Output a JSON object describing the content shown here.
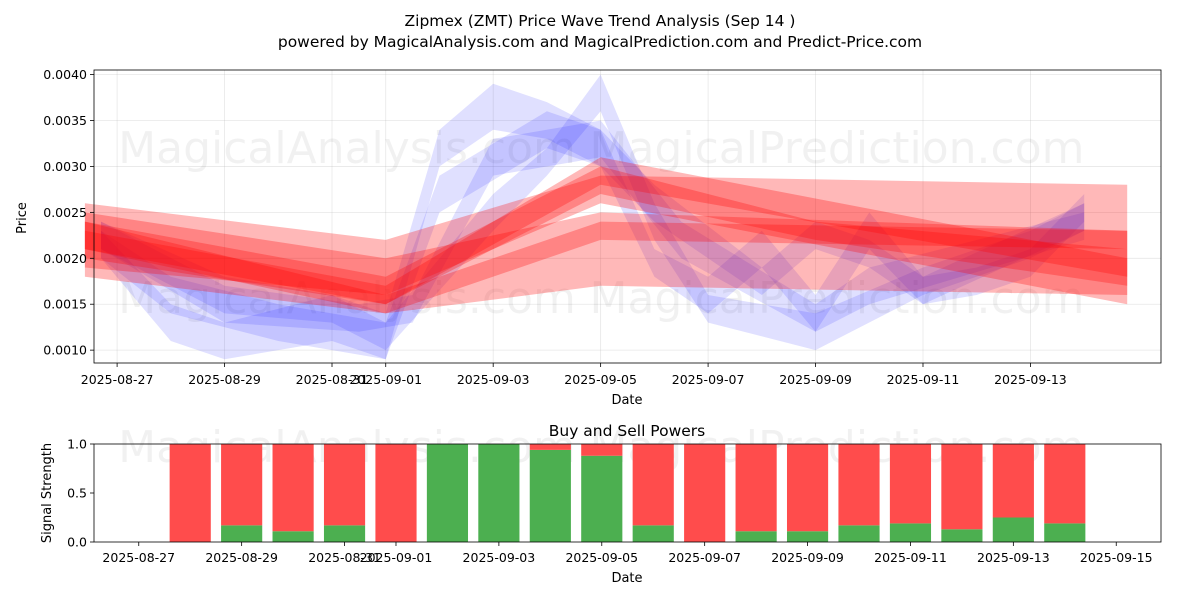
{
  "title": "Zipmex (ZMT) Price Wave Trend Analysis (Sep 14 )",
  "subtitle": "powered by MagicalAnalysis.com and MagicalPrediction.com and Predict-Price.com",
  "watermarks": [
    "MagicalAnalysis.com",
    "MagicalPrediction.com"
  ],
  "colors": {
    "bull_bar": "#4caf50",
    "bear_bar": "#ff4c4c",
    "red_band": "#ff0000",
    "blue_band": "#0000ff"
  },
  "chart_data": [
    {
      "type": "area",
      "title": "",
      "xlabel": "Date",
      "ylabel": "Price",
      "ylim": [
        0.00086,
        0.00405
      ],
      "xlim_days": [
        -0.43,
        19.43
      ],
      "x_tick_labels": [
        "2025-08-27",
        "2025-08-29",
        "2025-08-31",
        "2025-09-01",
        "2025-09-03",
        "2025-09-05",
        "2025-09-07",
        "2025-09-09",
        "2025-09-11",
        "2025-09-13"
      ],
      "x_tick_days": [
        0,
        2,
        4,
        5,
        7,
        9,
        11,
        13,
        15,
        17
      ],
      "y_ticks": [
        0.001,
        0.0015,
        0.002,
        0.0025,
        0.003,
        0.0035,
        0.004
      ],
      "y_tick_labels": [
        "0.0010",
        "0.0015",
        "0.0020",
        "0.0025",
        "0.0030",
        "0.0035",
        "0.0040"
      ],
      "red_bands": [
        {
          "name": "Red band 1",
          "x": [
            -0.6,
            5,
            9,
            18.8
          ],
          "upper": [
            0.0025,
            0.002,
            0.0025,
            0.0023
          ],
          "lower": [
            0.0018,
            0.0014,
            0.0017,
            0.0016
          ]
        },
        {
          "name": "Red band 2",
          "x": [
            -0.6,
            5,
            9,
            18.8
          ],
          "upper": [
            0.0023,
            0.0017,
            0.0031,
            0.002
          ],
          "lower": [
            0.002,
            0.0015,
            0.0028,
            0.0018
          ]
        },
        {
          "name": "Red band 3",
          "x": [
            -0.6,
            5,
            9,
            18.8
          ],
          "upper": [
            0.0026,
            0.0022,
            0.0029,
            0.0028
          ],
          "lower": [
            0.0019,
            0.0016,
            0.0026,
            0.0015
          ]
        },
        {
          "name": "Red band 4",
          "x": [
            -0.6,
            5,
            9,
            18.8
          ],
          "upper": [
            0.0024,
            0.0016,
            0.0024,
            0.0023
          ],
          "lower": [
            0.0021,
            0.0014,
            0.0022,
            0.0021
          ]
        },
        {
          "name": "Red band 5",
          "x": [
            -0.6,
            5,
            9,
            13,
            18.8
          ],
          "upper": [
            0.0024,
            0.0018,
            0.003,
            0.0024,
            0.0021
          ],
          "lower": [
            0.0021,
            0.0015,
            0.0027,
            0.0022,
            0.0017
          ]
        }
      ],
      "blue_bands": [
        {
          "name": "Blue band 1",
          "x": [
            -0.3,
            2,
            4.5,
            5.5,
            7,
            9,
            10.5,
            13,
            14,
            18
          ],
          "upper": [
            0.0024,
            0.0017,
            0.0015,
            0.0016,
            0.0033,
            0.0035,
            0.0024,
            0.0015,
            0.0019,
            0.0025
          ],
          "lower": [
            0.0021,
            0.0013,
            0.0012,
            0.0013,
            0.0029,
            0.0031,
            0.002,
            0.0012,
            0.0015,
            0.0022
          ]
        },
        {
          "name": "Blue band 2",
          "x": [
            -0.3,
            1,
            2,
            4,
            5,
            6,
            7,
            8,
            9,
            10,
            11,
            12,
            13,
            14,
            15,
            16,
            17,
            18
          ],
          "upper": [
            0.0023,
            0.0015,
            0.0013,
            0.0016,
            0.0014,
            0.0034,
            0.0039,
            0.0037,
            0.0034,
            0.0021,
            0.0018,
            0.0023,
            0.0016,
            0.0025,
            0.0018,
            0.0019,
            0.0021,
            0.0027
          ],
          "lower": [
            0.002,
            0.0011,
            0.0009,
            0.0011,
            0.0009,
            0.003,
            0.0034,
            0.0033,
            0.003,
            0.0018,
            0.0014,
            0.0019,
            0.0012,
            0.0021,
            0.0015,
            0.0016,
            0.0018,
            0.0024
          ]
        },
        {
          "name": "Blue band 3",
          "x": [
            -0.3,
            2,
            4,
            5,
            7,
            8,
            9,
            10,
            11,
            13,
            15,
            17,
            18
          ],
          "upper": [
            0.0024,
            0.0018,
            0.0016,
            0.0013,
            0.0027,
            0.0032,
            0.004,
            0.0026,
            0.0016,
            0.0014,
            0.0019,
            0.0023,
            0.0026
          ],
          "lower": [
            0.0021,
            0.0014,
            0.0013,
            0.001,
            0.0023,
            0.0029,
            0.0036,
            0.0022,
            0.0013,
            0.001,
            0.0016,
            0.002,
            0.0023
          ]
        },
        {
          "name": "Blue band 4",
          "x": [
            -0.3,
            1,
            3,
            5,
            6,
            8,
            9,
            10,
            12,
            13,
            14,
            15,
            18
          ],
          "upper": [
            0.0023,
            0.0018,
            0.0015,
            0.0013,
            0.0029,
            0.0036,
            0.0034,
            0.0028,
            0.0019,
            0.0024,
            0.0022,
            0.0018,
            0.0026
          ],
          "lower": [
            0.002,
            0.0014,
            0.0011,
            0.0009,
            0.0025,
            0.0032,
            0.003,
            0.0024,
            0.0016,
            0.0021,
            0.0019,
            0.0015,
            0.0023
          ]
        }
      ]
    },
    {
      "type": "bar",
      "title": "Buy and Sell Powers",
      "xlabel": "Date",
      "ylabel": "Signal Strength",
      "ylim": [
        0,
        1
      ],
      "xlim_days": [
        -0.87,
        19.87
      ],
      "y_ticks": [
        0.0,
        0.5,
        1.0
      ],
      "y_tick_labels": [
        "0.0",
        "0.5",
        "1.0"
      ],
      "x_tick_labels": [
        "2025-08-27",
        "2025-08-29",
        "2025-08-31",
        "2025-09-01",
        "2025-09-03",
        "2025-09-05",
        "2025-09-07",
        "2025-09-09",
        "2025-09-11",
        "2025-09-13",
        "2025-09-15"
      ],
      "x_tick_days": [
        0,
        2,
        4,
        5,
        7,
        9,
        11,
        13,
        15,
        17,
        19
      ],
      "categories": [
        "2025-08-28",
        "2025-08-29",
        "2025-08-30",
        "2025-08-31",
        "2025-09-01",
        "2025-09-02",
        "2025-09-03",
        "2025-09-04",
        "2025-09-05",
        "2025-09-06",
        "2025-09-07",
        "2025-09-08",
        "2025-09-09",
        "2025-09-10",
        "2025-09-11",
        "2025-09-12",
        "2025-09-13",
        "2025-09-14"
      ],
      "series": [
        {
          "name": "Buy",
          "values": [
            0.0,
            0.17,
            0.11,
            0.17,
            0.0,
            1.0,
            1.0,
            0.94,
            0.88,
            0.17,
            0.0,
            0.11,
            0.11,
            0.17,
            0.19,
            0.13,
            0.25,
            0.19
          ]
        },
        {
          "name": "Sell",
          "values": [
            1.0,
            0.83,
            0.89,
            0.83,
            1.0,
            0.0,
            0.0,
            0.06,
            0.12,
            0.83,
            1.0,
            0.89,
            0.89,
            0.83,
            0.81,
            0.87,
            0.75,
            0.81
          ]
        }
      ]
    }
  ]
}
